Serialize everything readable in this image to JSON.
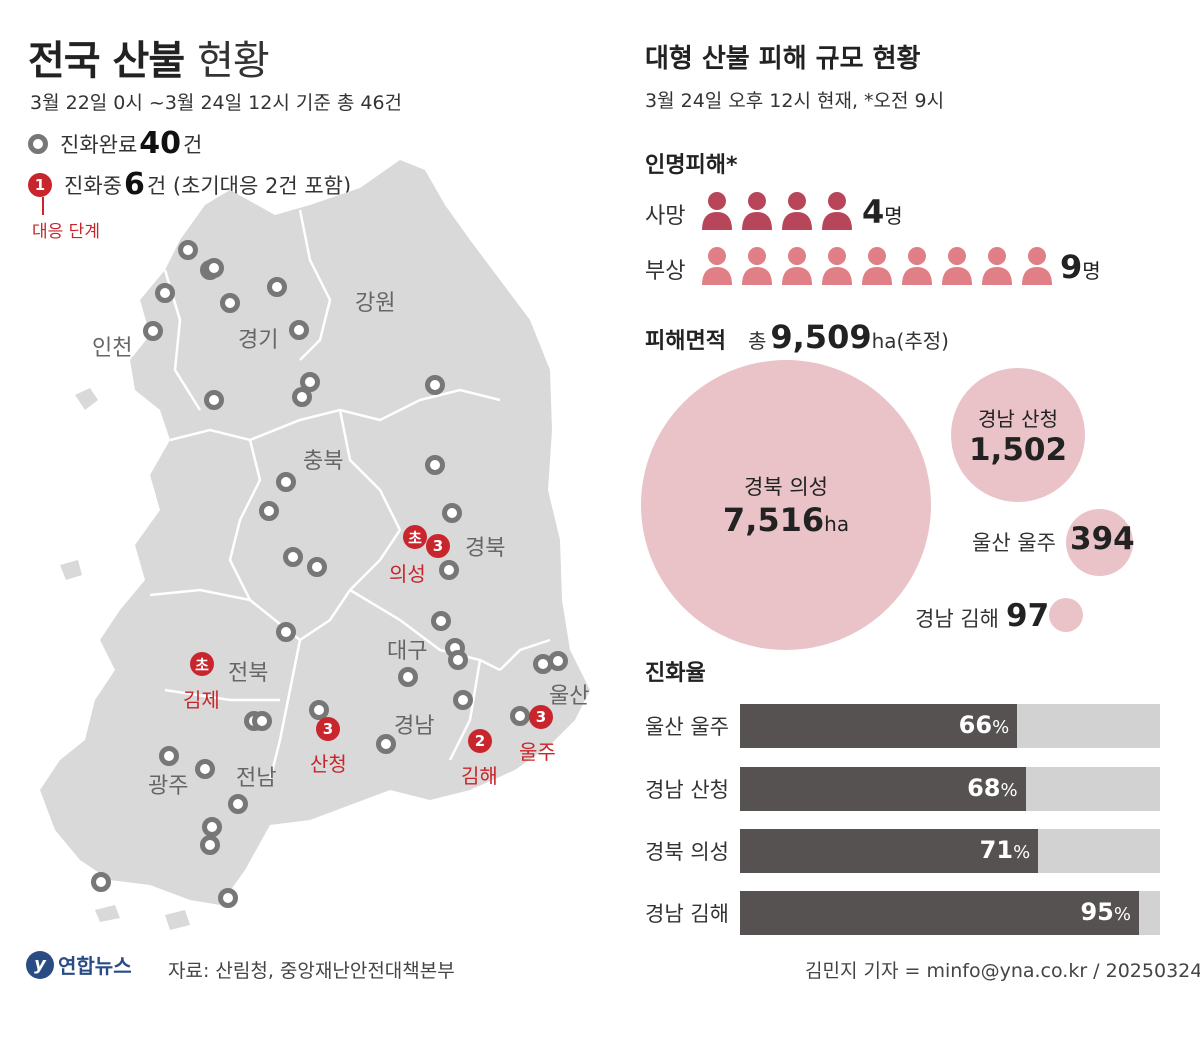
{
  "left": {
    "title_bold": "전국 산불",
    "title_light": "현황",
    "subtitle": "3월 22일 0시 ~3월 24일 12시 기준 총 46건",
    "legend_done_label": "진화완료",
    "legend_done_count": "40",
    "legend_done_unit": "건",
    "legend_active_mark": "1",
    "legend_active_label": "진화중",
    "legend_active_count": "6",
    "legend_active_unit": "건 (초기대응 2건 포함)",
    "stage_label": "대응 단계"
  },
  "map": {
    "regions": [
      "인천",
      "경기",
      "강원",
      "충북",
      "경북",
      "대구",
      "울산",
      "전북",
      "경남",
      "광주",
      "전남"
    ],
    "active_fires": [
      {
        "mark": "초",
        "name": "의성"
      },
      {
        "mark": "3",
        "name": ""
      },
      {
        "mark": "초",
        "name": "김제"
      },
      {
        "mark": "3",
        "name": "산청"
      },
      {
        "mark": "2",
        "name": "김해"
      },
      {
        "mark": "3",
        "name": "울주"
      }
    ]
  },
  "right": {
    "title": "대형 산불 피해 규모 현황",
    "subtitle": "3월 24일 오후 12시 현재, *오전 9시",
    "casualty_section": "인명피해*",
    "death_label": "사망",
    "death_count": "4",
    "death_unit": "명",
    "injury_label": "부상",
    "injury_count": "9",
    "injury_unit": "명",
    "area_section": "피해면적",
    "area_total_prefix": "총",
    "area_total": "9,509",
    "area_unit": "ha",
    "area_note": "(추정)",
    "rate_section": "진화율"
  },
  "footer": {
    "logo": "연합뉴스",
    "source": "자료: 산림청, 중앙재난안전대책본부",
    "credit": "김민지 기자 = minfo@yna.co.kr / 20250324"
  },
  "colors": {
    "accent_red": "#c8252c",
    "death": "#b8465a",
    "injury": "#e07f86",
    "bubble": "#e9c3c8",
    "bar_fill": "#575252",
    "bar_track": "#d2d2d2",
    "map_land": "#d9d9d9"
  },
  "chart_data": [
    {
      "type": "pictogram",
      "categories": [
        "사망",
        "부상"
      ],
      "values": [
        4,
        9
      ],
      "unit": "명"
    },
    {
      "type": "bubble",
      "title": "피해면적",
      "unit": "ha",
      "categories": [
        "경북 의성",
        "경남 산청",
        "울산 울주",
        "경남 김해"
      ],
      "values": [
        7516,
        1502,
        394,
        97
      ],
      "labels": [
        "7,516",
        "1,502",
        "394",
        "97"
      ]
    },
    {
      "type": "bar",
      "title": "진화율",
      "orientation": "horizontal",
      "categories": [
        "울산 울주",
        "경남 산청",
        "경북 의성",
        "경남 김해"
      ],
      "values": [
        66,
        68,
        71,
        95
      ],
      "unit": "%",
      "ylim": [
        0,
        100
      ]
    }
  ]
}
